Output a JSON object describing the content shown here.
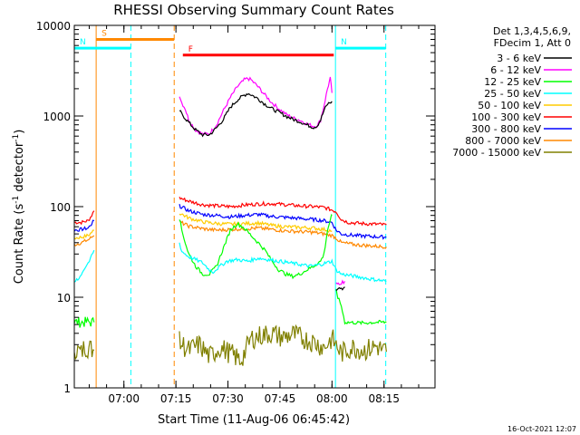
{
  "chart_data": {
    "type": "line",
    "title": "RHESSI Observing Summary Count Rates",
    "xlabel": "Start Time (11-Aug-06 06:45:42)",
    "ylabel_prefix": "Count Rate (s",
    "ylabel_exp": "-1",
    "ylabel_mid": " detector",
    "ylabel_suffix": ")",
    "ylog": true,
    "ylim": [
      1,
      10000
    ],
    "xlim_min": [
      0,
      104
    ],
    "x_unit": "minutes since 06:45:42",
    "x_ticks": [
      {
        "t": 14.3,
        "label": "07:00"
      },
      {
        "t": 29.3,
        "label": "07:15"
      },
      {
        "t": 44.3,
        "label": "07:30"
      },
      {
        "t": 59.3,
        "label": "07:45"
      },
      {
        "t": 74.3,
        "label": "08:00"
      },
      {
        "t": 89.3,
        "label": "08:15"
      }
    ],
    "y_ticks": [
      {
        "v": 1,
        "label": "1"
      },
      {
        "v": 10,
        "label": "10"
      },
      {
        "v": 100,
        "label": "100"
      },
      {
        "v": 1000,
        "label": "1000"
      },
      {
        "v": 10000,
        "label": "10000"
      }
    ],
    "legend_header": [
      "Det 1,3,4,5,6,9,",
      "FDecim 1, Att 0"
    ],
    "legend_position": "right",
    "footer_date": "16-Oct-2021 12:07",
    "series": [
      {
        "name": "3 - 6 keV",
        "color": "#000000"
      },
      {
        "name": "6 - 12 keV",
        "color": "#ff00ff"
      },
      {
        "name": "12 - 25 keV",
        "color": "#00ff00"
      },
      {
        "name": "25 - 50 keV",
        "color": "#00ffff"
      },
      {
        "name": "50 - 100 keV",
        "color": "#ffcc00"
      },
      {
        "name": "100 - 300 keV",
        "color": "#ff0000"
      },
      {
        "name": "300 - 800 keV",
        "color": "#0000ff"
      },
      {
        "name": "800 - 7000 keV",
        "color": "#ff8800"
      },
      {
        "name": "7000 - 15000 keV",
        "color": "#808000"
      }
    ],
    "flags": [
      {
        "label": "S",
        "color": "#ff8800",
        "t0": 6.3,
        "t1": 28.8,
        "level": 7000
      },
      {
        "label": "N",
        "color": "#00ffff",
        "t0": 0,
        "t1": 16.3,
        "level": 5600
      },
      {
        "label": "N",
        "color": "#00ffff",
        "t0": 75.3,
        "t1": 89.8,
        "level": 5600
      },
      {
        "label": "F",
        "color": "#ff0000",
        "t0": 31.3,
        "t1": 74.8,
        "level": 4700
      }
    ],
    "markers": [
      {
        "color": "#00ffff",
        "t": 0,
        "dashed": false
      },
      {
        "color": "#ff8800",
        "t": 6.3,
        "dashed": false
      },
      {
        "color": "#00ffff",
        "t": 16.3,
        "dashed": true
      },
      {
        "color": "#ff8800",
        "t": 28.8,
        "dashed": true
      },
      {
        "color": "#00ffff",
        "t": 75.3,
        "dashed": false
      },
      {
        "color": "#00ffff",
        "t": 89.8,
        "dashed": true
      }
    ],
    "segments": [
      {
        "series": 5,
        "points": [
          [
            0,
            67
          ],
          [
            2,
            67
          ],
          [
            4,
            70
          ],
          [
            5,
            80
          ],
          [
            5.7,
            90
          ]
        ]
      },
      {
        "series": 6,
        "points": [
          [
            0,
            55
          ],
          [
            2,
            56
          ],
          [
            4,
            58
          ],
          [
            5,
            65
          ],
          [
            5.7,
            70
          ]
        ]
      },
      {
        "series": 4,
        "points": [
          [
            0,
            45
          ],
          [
            2,
            46
          ],
          [
            4,
            48
          ],
          [
            5,
            52
          ],
          [
            5.7,
            55
          ]
        ]
      },
      {
        "series": 7,
        "points": [
          [
            0,
            38
          ],
          [
            2,
            40
          ],
          [
            4,
            43
          ],
          [
            5,
            46
          ],
          [
            5.7,
            48
          ]
        ]
      },
      {
        "series": 3,
        "points": [
          [
            0,
            15
          ],
          [
            2,
            17
          ],
          [
            3,
            20
          ],
          [
            4,
            24
          ],
          [
            5,
            30
          ],
          [
            5.7,
            33
          ]
        ]
      },
      {
        "series": 2,
        "points": [
          [
            0,
            5.3
          ],
          [
            5.7,
            5.3
          ]
        ]
      },
      {
        "series": 8,
        "points": [
          [
            0,
            2.8
          ],
          [
            2,
            2.4
          ],
          [
            3,
            2.9
          ],
          [
            5.7,
            2.6
          ]
        ]
      },
      {
        "series": 1,
        "points": [
          [
            30.3,
            1700
          ],
          [
            31,
            1400
          ],
          [
            32,
            1200
          ],
          [
            33,
            900
          ],
          [
            35,
            700
          ],
          [
            37,
            630
          ],
          [
            39,
            640
          ],
          [
            41,
            800
          ],
          [
            43,
            1150
          ],
          [
            45,
            1600
          ],
          [
            47,
            2100
          ],
          [
            49,
            2500
          ],
          [
            50,
            2600
          ],
          [
            51,
            2500
          ],
          [
            53,
            2100
          ],
          [
            55,
            1700
          ],
          [
            57,
            1400
          ],
          [
            59,
            1200
          ],
          [
            61,
            1050
          ],
          [
            63,
            950
          ],
          [
            65,
            900
          ],
          [
            67,
            820
          ],
          [
            69,
            770
          ],
          [
            70,
            780
          ],
          [
            71,
            900
          ],
          [
            72,
            1300
          ],
          [
            73,
            2000
          ],
          [
            73.8,
            2600
          ],
          [
            74.3,
            1800
          ]
        ]
      },
      {
        "series": 0,
        "points": [
          [
            30.3,
            1150
          ],
          [
            31,
            1050
          ],
          [
            33,
            850
          ],
          [
            35,
            700
          ],
          [
            37,
            620
          ],
          [
            39,
            620
          ],
          [
            41,
            740
          ],
          [
            43,
            920
          ],
          [
            45,
            1250
          ],
          [
            47,
            1500
          ],
          [
            49,
            1700
          ],
          [
            50,
            1780
          ],
          [
            51,
            1720
          ],
          [
            53,
            1550
          ],
          [
            55,
            1350
          ],
          [
            57,
            1200
          ],
          [
            59,
            1100
          ],
          [
            61,
            1000
          ],
          [
            63,
            920
          ],
          [
            65,
            870
          ],
          [
            67,
            800
          ],
          [
            69,
            750
          ],
          [
            70,
            780
          ],
          [
            71,
            900
          ],
          [
            72,
            1150
          ],
          [
            73,
            1350
          ],
          [
            74.3,
            1450
          ]
        ]
      },
      {
        "series": 5,
        "points": [
          [
            30.3,
            125
          ],
          [
            33,
            115
          ],
          [
            37,
            105
          ],
          [
            41,
            102
          ],
          [
            45,
            100
          ],
          [
            49,
            104
          ],
          [
            53,
            107
          ],
          [
            57,
            108
          ],
          [
            61,
            105
          ],
          [
            65,
            102
          ],
          [
            69,
            100
          ],
          [
            72,
            98
          ],
          [
            74.3,
            92
          ],
          [
            75.5,
            88
          ],
          [
            77,
            72
          ],
          [
            79,
            67
          ],
          [
            83,
            65
          ],
          [
            87,
            64
          ],
          [
            90,
            63
          ]
        ]
      },
      {
        "series": 6,
        "points": [
          [
            30.3,
            102
          ],
          [
            33,
            90
          ],
          [
            37,
            82
          ],
          [
            41,
            80
          ],
          [
            45,
            77
          ],
          [
            49,
            80
          ],
          [
            53,
            82
          ],
          [
            57,
            78
          ],
          [
            61,
            76
          ],
          [
            65,
            74
          ],
          [
            69,
            72
          ],
          [
            72,
            70
          ],
          [
            74.3,
            67
          ],
          [
            75.5,
            55
          ],
          [
            77,
            50
          ],
          [
            81,
            48
          ],
          [
            85,
            47
          ],
          [
            90,
            46
          ]
        ]
      },
      {
        "series": 4,
        "points": [
          [
            30.3,
            85
          ],
          [
            33,
            75
          ],
          [
            37,
            68
          ],
          [
            41,
            65
          ],
          [
            45,
            64
          ],
          [
            49,
            65
          ],
          [
            53,
            66
          ],
          [
            57,
            62
          ],
          [
            61,
            60
          ],
          [
            65,
            59
          ],
          [
            69,
            58
          ],
          [
            72,
            56
          ],
          [
            74.3,
            54
          ]
        ]
      },
      {
        "series": 7,
        "points": [
          [
            30.3,
            68
          ],
          [
            33,
            61
          ],
          [
            37,
            57
          ],
          [
            41,
            55
          ],
          [
            45,
            56
          ],
          [
            49,
            57
          ],
          [
            53,
            58
          ],
          [
            57,
            56
          ],
          [
            61,
            54
          ],
          [
            65,
            53
          ],
          [
            69,
            52
          ],
          [
            72,
            50
          ],
          [
            74.3,
            48
          ],
          [
            75.5,
            45
          ],
          [
            77,
            40
          ],
          [
            81,
            38
          ],
          [
            85,
            37
          ],
          [
            90,
            36
          ]
        ]
      },
      {
        "series": 2,
        "points": [
          [
            30.3,
            75
          ],
          [
            31,
            55
          ],
          [
            32,
            40
          ],
          [
            33,
            30
          ],
          [
            35,
            22
          ],
          [
            37,
            18
          ],
          [
            39,
            18
          ],
          [
            41,
            22
          ],
          [
            43,
            35
          ],
          [
            45,
            55
          ],
          [
            47,
            65
          ],
          [
            49,
            58
          ],
          [
            51,
            48
          ],
          [
            53,
            40
          ],
          [
            55,
            33
          ],
          [
            57,
            25
          ],
          [
            59,
            20
          ],
          [
            61,
            18
          ],
          [
            63,
            17
          ],
          [
            65,
            18
          ],
          [
            67,
            20
          ],
          [
            69,
            22
          ],
          [
            71,
            25
          ],
          [
            72,
            30
          ],
          [
            73,
            55
          ],
          [
            74,
            75
          ],
          [
            74.3,
            80
          ]
        ]
      },
      {
        "series": 2,
        "points": [
          [
            75.5,
            12
          ],
          [
            76,
            10
          ],
          [
            77,
            8
          ],
          [
            78,
            5.3
          ],
          [
            83,
            5.2
          ],
          [
            87,
            5.3
          ],
          [
            90,
            5.3
          ]
        ]
      },
      {
        "series": 3,
        "points": [
          [
            30.3,
            40
          ],
          [
            31,
            32
          ],
          [
            33,
            28
          ],
          [
            35,
            26
          ],
          [
            37,
            24
          ],
          [
            39,
            20
          ],
          [
            40,
            19
          ],
          [
            42,
            22
          ],
          [
            44,
            25
          ],
          [
            47,
            26
          ],
          [
            50,
            25
          ],
          [
            53,
            27
          ],
          [
            56,
            26
          ],
          [
            59,
            25
          ],
          [
            62,
            24
          ],
          [
            65,
            23
          ],
          [
            68,
            22
          ],
          [
            71,
            23
          ],
          [
            74.3,
            25
          ],
          [
            75.5,
            20
          ],
          [
            77,
            18
          ],
          [
            81,
            17
          ],
          [
            85,
            16
          ],
          [
            90,
            15
          ]
        ]
      },
      {
        "series": 1,
        "points": [
          [
            75.5,
            14
          ],
          [
            77,
            14.5
          ],
          [
            78,
            15
          ]
        ]
      },
      {
        "series": 0,
        "points": [
          [
            75.5,
            12
          ],
          [
            77,
            12.5
          ],
          [
            78,
            13
          ]
        ]
      },
      {
        "series": 8,
        "points": [
          [
            30.3,
            3.2
          ],
          [
            33,
            2.6
          ],
          [
            36,
            3.0
          ],
          [
            39,
            2.2
          ],
          [
            42,
            2.8
          ],
          [
            45,
            2.4
          ],
          [
            48,
            2.0
          ],
          [
            51,
            3.5
          ],
          [
            54,
            3.8
          ],
          [
            57,
            4.0
          ],
          [
            60,
            3.6
          ],
          [
            63,
            3.9
          ],
          [
            66,
            3.5
          ],
          [
            69,
            3.2
          ],
          [
            72,
            2.8
          ],
          [
            74.3,
            3.5
          ],
          [
            77,
            2.4
          ],
          [
            80,
            2.8
          ],
          [
            84,
            2.6
          ],
          [
            87,
            2.9
          ],
          [
            90,
            2.5
          ]
        ]
      }
    ]
  }
}
